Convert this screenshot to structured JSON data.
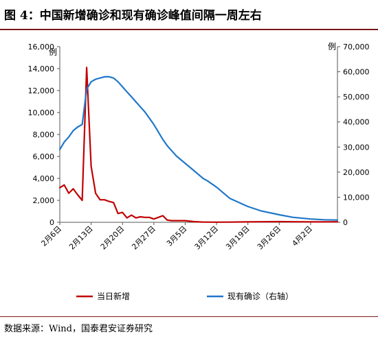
{
  "figure": {
    "title": "图 4：中国新增确诊和现有确诊峰值间隔一周左右",
    "source": "数据来源：Wind，国泰君安证券研究"
  },
  "colors": {
    "series_new": "#c00000",
    "series_active": "#1f77c8",
    "axis": "#555555",
    "rule": "#7a1a1a"
  },
  "chart_data": {
    "type": "line",
    "ylabel_left": "例",
    "ylabel_right": "例",
    "ylim_left": [
      0,
      16000
    ],
    "ylim_right": [
      0,
      70000
    ],
    "yticks_left": [
      "0",
      "2,000",
      "4,000",
      "6,000",
      "8,000",
      "10,000",
      "12,000",
      "14,000",
      "16,000"
    ],
    "yticks_right": [
      "0",
      "10,000",
      "20,000",
      "30,000",
      "40,000",
      "50,000",
      "60,000",
      "70,000"
    ],
    "x_range": [
      "2月6日",
      "4月8日"
    ],
    "xtick_labels": [
      "2月6日",
      "2月13日",
      "2月20日",
      "2月27日",
      "3月5日",
      "3月12日",
      "3月19日",
      "3月26日",
      "4月2日"
    ],
    "legend": [
      "当日新增",
      "现有确诊（右轴）"
    ],
    "legend_position": "bottom",
    "series": [
      {
        "name": "当日新增",
        "axis": "left",
        "x": [
          "2月6日",
          "2月7日",
          "2月8日",
          "2月9日",
          "2月10日",
          "2月11日",
          "2月12日",
          "2月13日",
          "2月14日",
          "2月15日",
          "2月16日",
          "2月17日",
          "2月18日",
          "2月19日",
          "2月20日",
          "2月21日",
          "2月22日",
          "2月23日",
          "2月24日",
          "2月25日",
          "2月26日",
          "2月27日",
          "2月28日",
          "2月29日",
          "3月1日",
          "3月2日",
          "3月3日",
          "3月4日",
          "3月5日",
          "3月6日",
          "3月7日",
          "3月8日",
          "3月9日",
          "3月10日",
          "3月12日",
          "3月15日",
          "3月19日",
          "3月22日",
          "3月26日",
          "3月29日",
          "4月2日",
          "4月5日",
          "4月8日"
        ],
        "values": [
          3150,
          3400,
          2650,
          3050,
          2500,
          2000,
          14100,
          5100,
          2650,
          2050,
          2050,
          1900,
          1800,
          800,
          900,
          400,
          650,
          400,
          500,
          450,
          450,
          300,
          450,
          600,
          200,
          150,
          150,
          150,
          150,
          100,
          60,
          40,
          20,
          20,
          10,
          20,
          40,
          50,
          60,
          50,
          40,
          40,
          50
        ]
      },
      {
        "name": "现有确诊（右轴）",
        "axis": "right",
        "x": [
          "2月6日",
          "2月7日",
          "2月8日",
          "2月9日",
          "2月10日",
          "2月11日",
          "2月12日",
          "2月13日",
          "2月14日",
          "2月15日",
          "2月16日",
          "2月17日",
          "2月18日",
          "2月19日",
          "2月20日",
          "2月21日",
          "2月22日",
          "2月23日",
          "2月24日",
          "2月25日",
          "2月26日",
          "2月27日",
          "2月28日",
          "2月29日",
          "3月1日",
          "3月2日",
          "3月3日",
          "3月4日",
          "3月5日",
          "3月6日",
          "3月7日",
          "3月8日",
          "3月9日",
          "3月10日",
          "3月12日",
          "3月15日",
          "3月19日",
          "3月22日",
          "3月26日",
          "3月29日",
          "4月2日",
          "4月5日",
          "4月8日"
        ],
        "values": [
          29000,
          32000,
          34000,
          36500,
          38000,
          39000,
          53000,
          56000,
          57000,
          57500,
          58000,
          58000,
          57500,
          56000,
          54000,
          52000,
          50000,
          48000,
          46000,
          44000,
          41500,
          39000,
          36000,
          33000,
          30500,
          28500,
          26500,
          25000,
          23500,
          22000,
          20500,
          19000,
          17500,
          16500,
          14000,
          9500,
          6300,
          4500,
          3000,
          2000,
          1300,
          1000,
          900
        ]
      }
    ]
  }
}
